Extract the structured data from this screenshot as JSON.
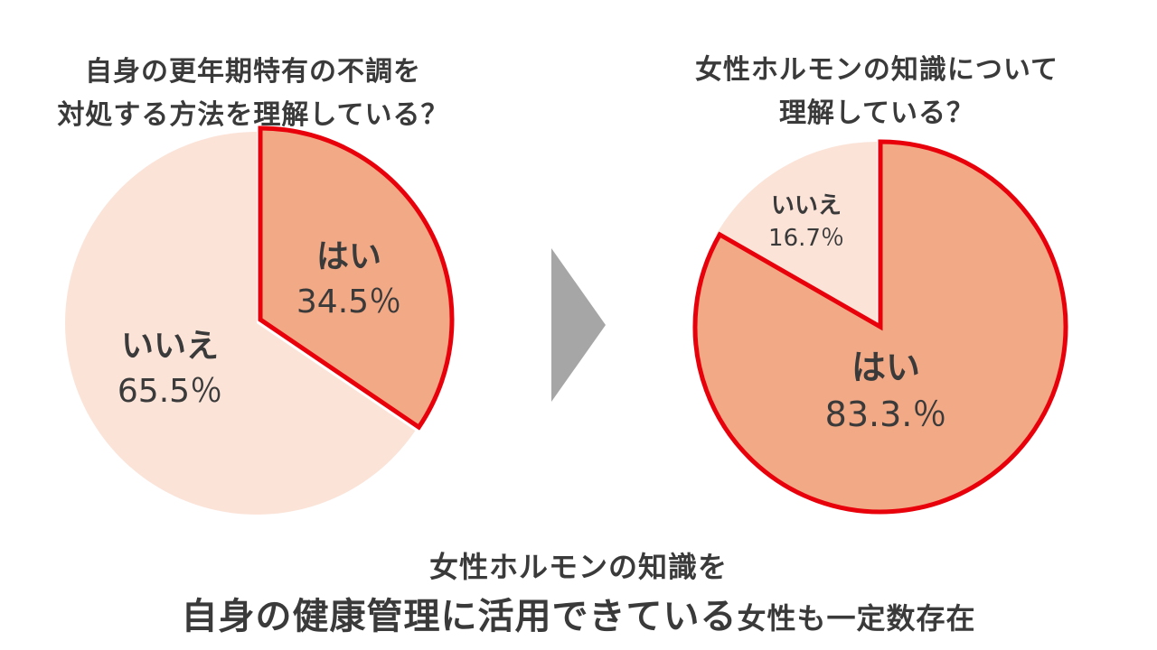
{
  "chart_data": [
    {
      "type": "pie",
      "title_lines": [
        "自身の更年期特有の不調を",
        "対処する方法を理解している？"
      ],
      "slices": [
        {
          "label": "はい",
          "value": 34.5,
          "value_text": "34.5％",
          "color": "#F2A986",
          "highlight": true
        },
        {
          "label": "いいえ",
          "value": 65.5,
          "value_text": "65.5％",
          "color": "#FBE3D8",
          "highlight": false
        }
      ]
    },
    {
      "type": "pie",
      "title_lines": [
        "女性ホルモンの知識について",
        "理解している？"
      ],
      "slices": [
        {
          "label": "はい",
          "value": 83.3,
          "value_text": "83.3.％",
          "color": "#F2A986",
          "highlight": true
        },
        {
          "label": "いいえ",
          "value": 16.7,
          "value_text": "16.7％",
          "color": "#FBE3D8",
          "highlight": false
        }
      ]
    }
  ],
  "colors": {
    "highlight_stroke": "#E8000B",
    "arrow": "#A6A6A6",
    "text": "#3A3A3A"
  },
  "footer": {
    "line1": "女性ホルモンの知識を",
    "line2_main": "自身の健康管理に活用できている",
    "line2_tail": "女性も一定数存在"
  }
}
